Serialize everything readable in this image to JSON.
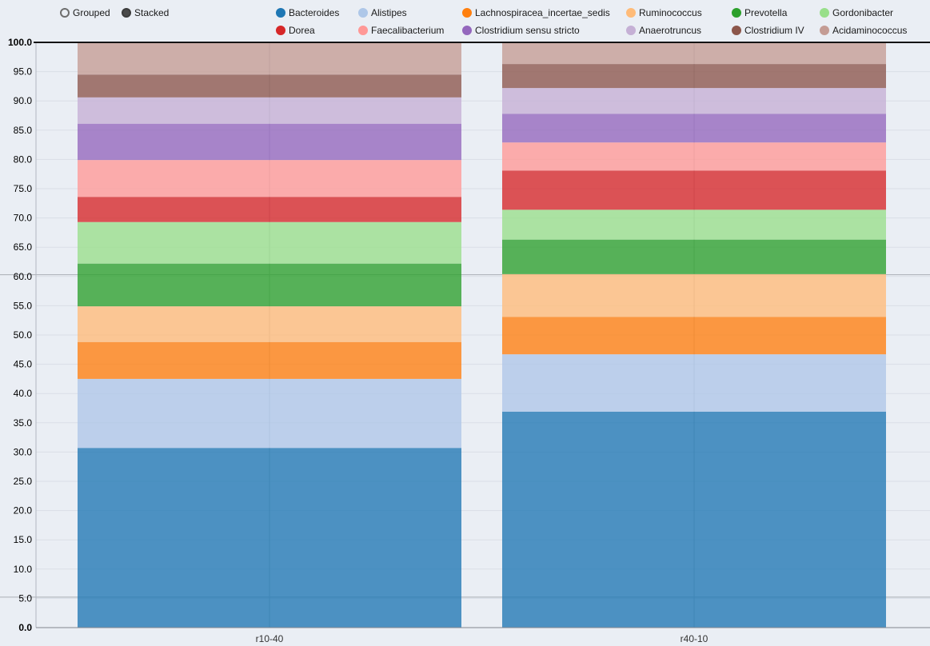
{
  "controls": [
    {
      "label": "Grouped",
      "selected": false
    },
    {
      "label": "Stacked",
      "selected": true
    }
  ],
  "chart_data": {
    "type": "bar",
    "variant": "stacked",
    "title": "",
    "xlabel": "",
    "ylabel": "",
    "legend_position": "top",
    "grid": true,
    "categories": [
      "r10-40",
      "r40-10"
    ],
    "ylim": [
      0,
      100
    ],
    "ytick_step": 5,
    "yticks": [
      "0.0",
      "5.0",
      "10.0",
      "15.0",
      "20.0",
      "25.0",
      "30.0",
      "35.0",
      "40.0",
      "45.0",
      "50.0",
      "55.0",
      "60.0",
      "65.0",
      "70.0",
      "75.0",
      "80.0",
      "85.0",
      "90.0",
      "95.0",
      "100.0"
    ],
    "series": [
      {
        "name": "Bacteroides",
        "color": "#1f77b4",
        "values": [
          30.7,
          36.9
        ]
      },
      {
        "name": "Alistipes",
        "color": "#aec7e8",
        "values": [
          11.8,
          9.8
        ]
      },
      {
        "name": "Lachnospiracea_incertae_sedis",
        "color": "#ff7f0e",
        "values": [
          6.3,
          6.4
        ]
      },
      {
        "name": "Ruminococcus",
        "color": "#ffbb78",
        "values": [
          6.1,
          7.3
        ]
      },
      {
        "name": "Prevotella",
        "color": "#2ca02c",
        "values": [
          7.3,
          5.9
        ]
      },
      {
        "name": "Gordonibacter",
        "color": "#98df8a",
        "values": [
          7.1,
          5.1
        ]
      },
      {
        "name": "Dorea",
        "color": "#d62728",
        "values": [
          4.3,
          6.7
        ]
      },
      {
        "name": "Faecalibacterium",
        "color": "#ff9896",
        "values": [
          6.3,
          4.8
        ]
      },
      {
        "name": "Clostridium sensu stricto",
        "color": "#9467bd",
        "values": [
          6.2,
          4.9
        ]
      },
      {
        "name": "Anaerotruncus",
        "color": "#c5b0d5",
        "values": [
          4.5,
          4.4
        ]
      },
      {
        "name": "Clostridium IV",
        "color": "#8c564b",
        "values": [
          4.1,
          4.1
        ]
      },
      {
        "name": "Acidaminococcus",
        "color": "#5c4033",
        "values": [
          5.3,
          3.7
        ]
      }
    ]
  }
}
